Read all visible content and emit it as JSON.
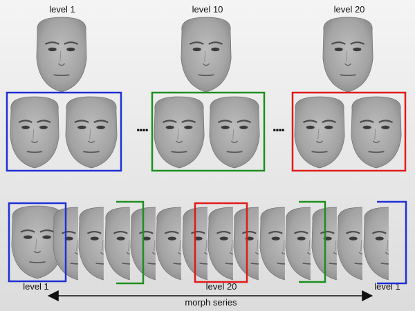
{
  "labels": {
    "top_level_1": "level 1",
    "top_level_10": "level 10",
    "top_level_20": "level 20",
    "bottom_level_1_left": "level 1",
    "bottom_level_20": "level 20",
    "bottom_level_1_right": "level 1",
    "morph_series": "morph series"
  },
  "colors": {
    "level_1": "#1f2fd6",
    "level_10": "#1e8f1e",
    "level_20": "#e01b1b",
    "face": "#a9a9a9",
    "face_dark": "#4a4a4a"
  },
  "separators": [
    "....",
    "...."
  ]
}
